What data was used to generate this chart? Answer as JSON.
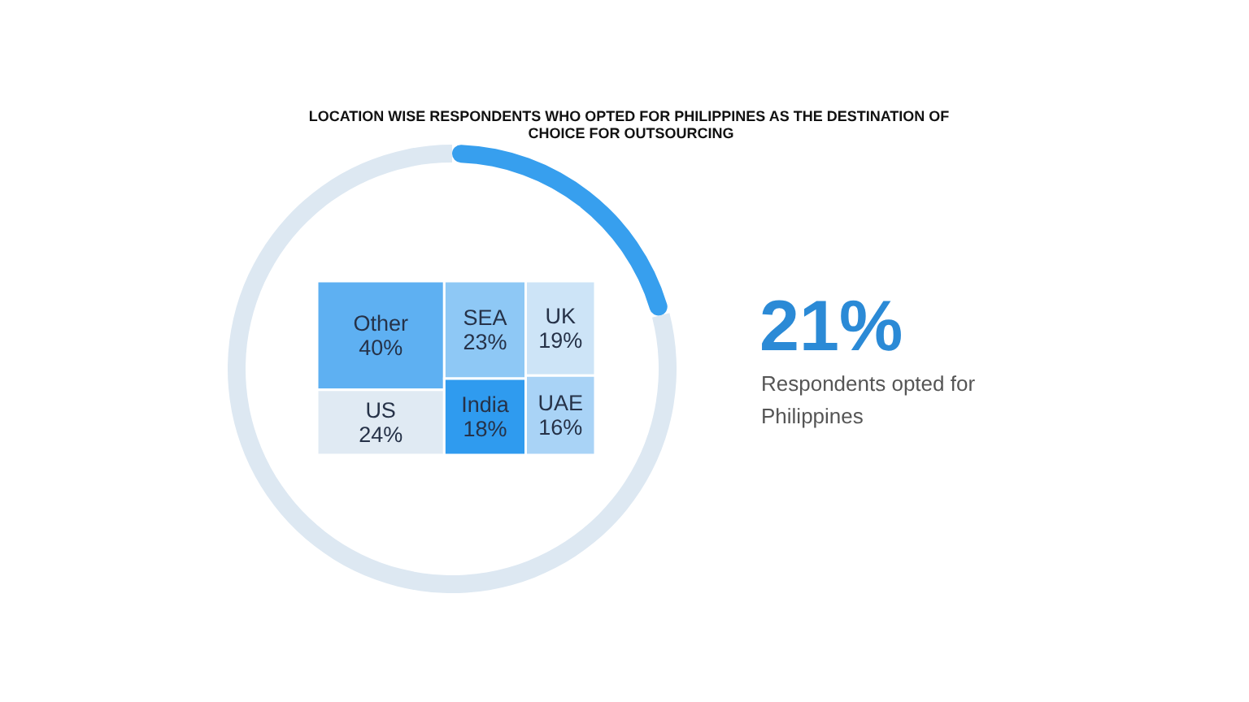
{
  "chart_data": [
    {
      "type": "donut",
      "title": "LOCATION WISE RESPONDENTS WHO OPTED FOR PHILIPPINES AS THE DESTINATION OF CHOICE FOR OUTSOURCING",
      "categories": [
        null,
        null
      ],
      "values": [
        21,
        79
      ],
      "colors": [
        "#379fee",
        "#dde8f2"
      ],
      "annotations": [
        "21%",
        "Respondents opted for Philippines"
      ]
    },
    {
      "type": "other",
      "categories": [
        "Other",
        "US",
        "SEA",
        "India",
        "UK",
        "UAE"
      ],
      "values": [
        40,
        24,
        23,
        18,
        19,
        16
      ],
      "value_labels": [
        "40%",
        "24%",
        "23%",
        "18%",
        "19%",
        "16%"
      ],
      "colors": [
        "#5eb0f2",
        "#e0eaf3",
        "#8ec8f5",
        "#2f9bef",
        "#cde4f7",
        "#a9d3f6"
      ]
    }
  ]
}
